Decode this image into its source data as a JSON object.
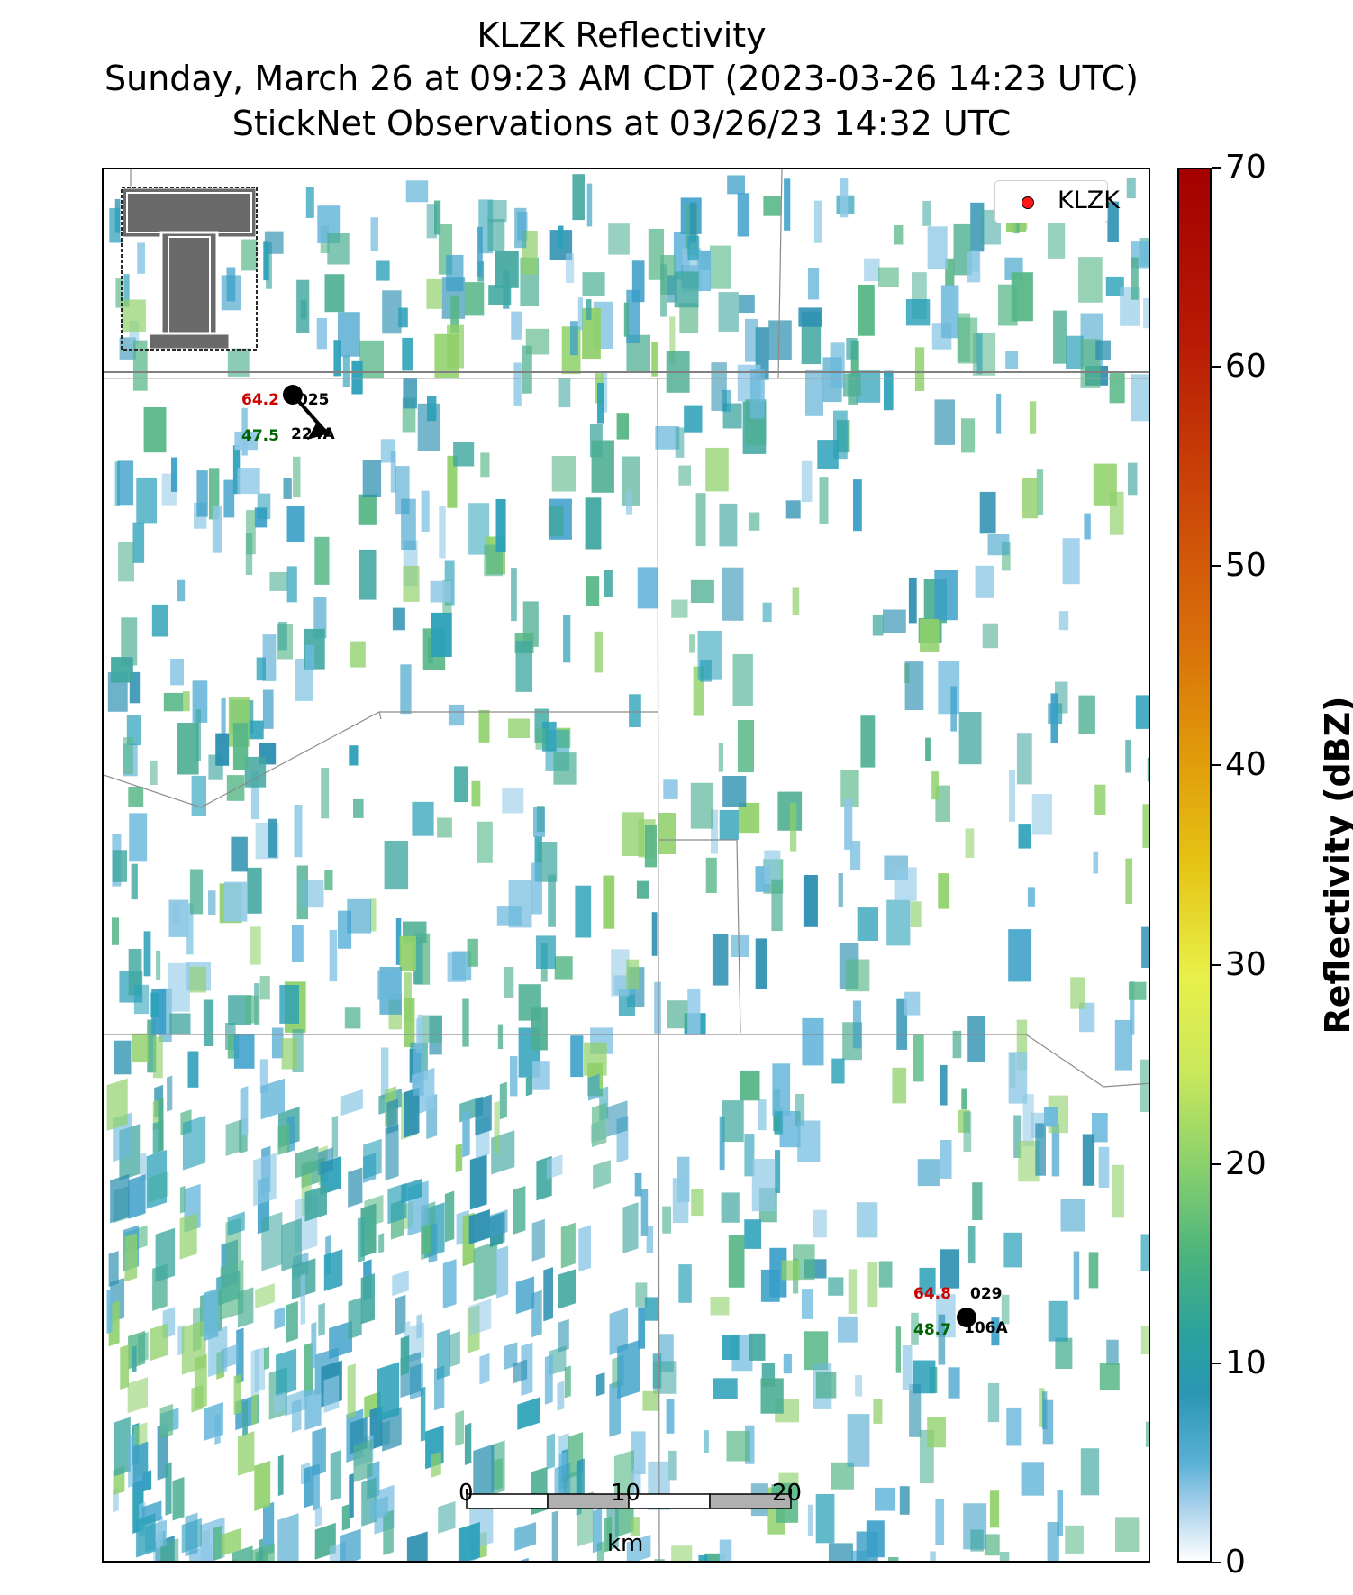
{
  "header": {
    "title": "KLZK Reflectivity",
    "time_line": "Sunday, March 26 at 09:23 AM CDT (2023-03-26 14:23 UTC)",
    "obs_line": "StickNet Observations at 03/26/23 14:32 UTC"
  },
  "legend": {
    "label": "KLZK",
    "marker_color": "#ff1a1a"
  },
  "colorbar": {
    "label": "Reflectivity (dBZ)",
    "ticks": [
      "0",
      "10",
      "20",
      "30",
      "40",
      "50",
      "60",
      "70"
    ]
  },
  "stations": [
    {
      "temp": "64.2",
      "dewpoint": "47.5",
      "direction": "025",
      "id": "224A",
      "temp_color": "#cc0000",
      "dewpoint_color": "#006400"
    },
    {
      "temp": "64.8",
      "dewpoint": "48.7",
      "direction": "029",
      "id": "106A",
      "temp_color": "#cc0000",
      "dewpoint_color": "#006400"
    }
  ],
  "scalebar": {
    "ticks": [
      "0",
      "10",
      "20"
    ],
    "unit": "km"
  },
  "logo": {
    "name": "Texas Tech Double T"
  },
  "palette": [
    "#2aa0b8",
    "#3a9ec8",
    "#41a7a0",
    "#56b686",
    "#8fd06a",
    "#8ec8e6",
    "#6ab8dc",
    "#2b8fb0",
    "#4cae92"
  ]
}
